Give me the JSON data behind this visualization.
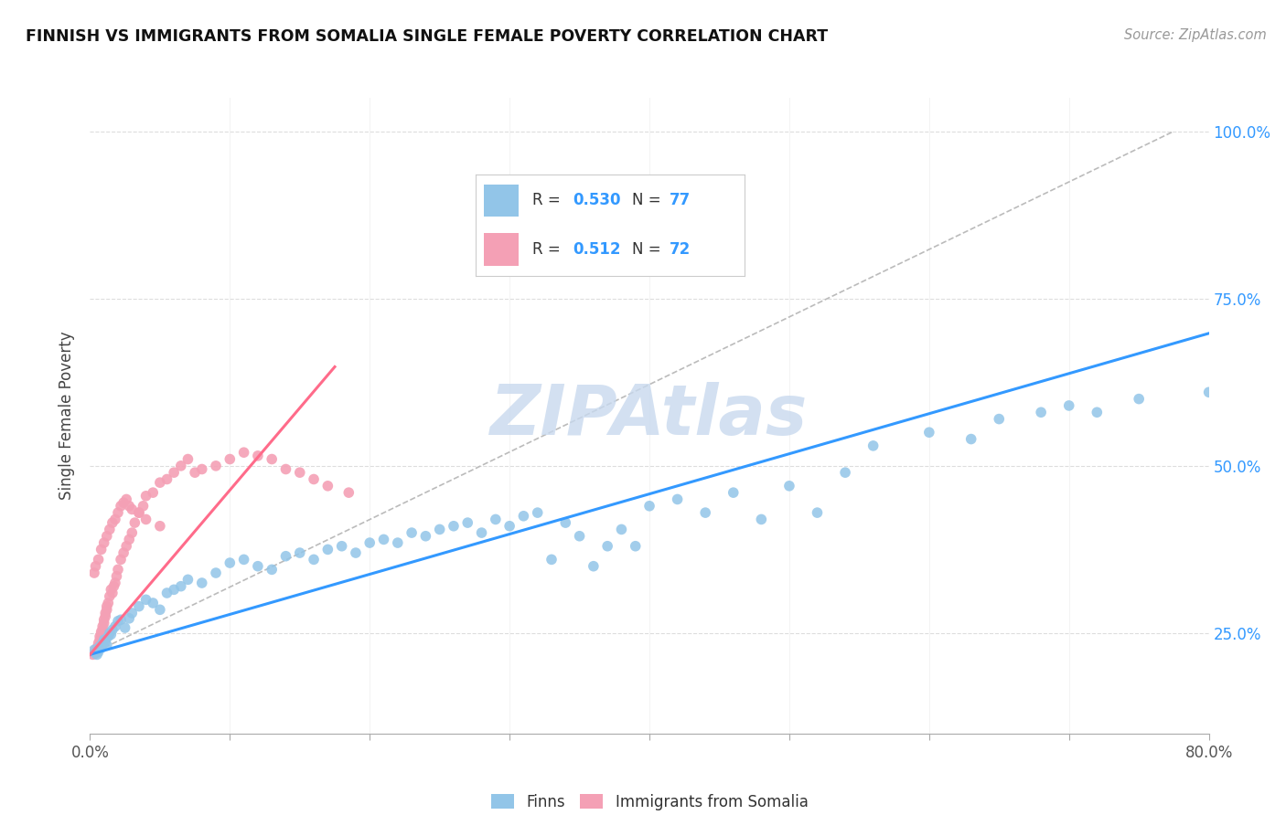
{
  "title": "FINNISH VS IMMIGRANTS FROM SOMALIA SINGLE FEMALE POVERTY CORRELATION CHART",
  "source": "Source: ZipAtlas.com",
  "ylabel": "Single Female Poverty",
  "xlim": [
    0.0,
    0.8
  ],
  "ylim": [
    0.1,
    1.05
  ],
  "xticks": [
    0.0,
    0.1,
    0.2,
    0.3,
    0.4,
    0.5,
    0.6,
    0.7,
    0.8
  ],
  "ytick_positions": [
    0.25,
    0.5,
    0.75,
    1.0
  ],
  "ytick_labels": [
    "25.0%",
    "50.0%",
    "75.0%",
    "100.0%"
  ],
  "blue_color": "#92C5E8",
  "pink_color": "#F4A0B5",
  "blue_line_color": "#3399FF",
  "pink_line_color": "#FF6B8A",
  "watermark_color": "#C8D9EE",
  "legend_R_blue": "0.530",
  "legend_N_blue": "77",
  "legend_R_pink": "0.512",
  "legend_N_pink": "72",
  "blue_line_x": [
    0.0,
    0.8
  ],
  "blue_line_y": [
    0.218,
    0.698
  ],
  "pink_line_x": [
    0.0,
    0.175
  ],
  "pink_line_y": [
    0.218,
    0.648
  ],
  "dashed_line_x": [
    0.0,
    0.775
  ],
  "dashed_line_y": [
    0.218,
    1.0
  ],
  "blue_scatter_x": [
    0.003,
    0.004,
    0.005,
    0.006,
    0.007,
    0.008,
    0.009,
    0.01,
    0.011,
    0.012,
    0.013,
    0.014,
    0.015,
    0.016,
    0.018,
    0.02,
    0.022,
    0.025,
    0.028,
    0.03,
    0.035,
    0.04,
    0.045,
    0.05,
    0.055,
    0.06,
    0.065,
    0.07,
    0.08,
    0.09,
    0.1,
    0.11,
    0.12,
    0.13,
    0.14,
    0.15,
    0.16,
    0.17,
    0.18,
    0.19,
    0.2,
    0.21,
    0.22,
    0.23,
    0.24,
    0.25,
    0.26,
    0.27,
    0.28,
    0.29,
    0.3,
    0.31,
    0.32,
    0.33,
    0.34,
    0.35,
    0.36,
    0.37,
    0.38,
    0.39,
    0.4,
    0.42,
    0.44,
    0.46,
    0.48,
    0.5,
    0.52,
    0.54,
    0.56,
    0.6,
    0.63,
    0.65,
    0.68,
    0.7,
    0.72,
    0.75,
    0.8
  ],
  "blue_scatter_y": [
    0.225,
    0.22,
    0.218,
    0.222,
    0.23,
    0.228,
    0.235,
    0.24,
    0.238,
    0.232,
    0.245,
    0.25,
    0.248,
    0.255,
    0.26,
    0.268,
    0.27,
    0.258,
    0.272,
    0.28,
    0.29,
    0.3,
    0.295,
    0.285,
    0.31,
    0.315,
    0.32,
    0.33,
    0.325,
    0.34,
    0.355,
    0.36,
    0.35,
    0.345,
    0.365,
    0.37,
    0.36,
    0.375,
    0.38,
    0.37,
    0.385,
    0.39,
    0.385,
    0.4,
    0.395,
    0.405,
    0.41,
    0.415,
    0.4,
    0.42,
    0.41,
    0.425,
    0.43,
    0.36,
    0.415,
    0.395,
    0.35,
    0.38,
    0.405,
    0.38,
    0.44,
    0.45,
    0.43,
    0.46,
    0.42,
    0.47,
    0.43,
    0.49,
    0.53,
    0.55,
    0.54,
    0.57,
    0.58,
    0.59,
    0.58,
    0.6,
    0.61
  ],
  "pink_scatter_x": [
    0.002,
    0.003,
    0.004,
    0.005,
    0.005,
    0.006,
    0.006,
    0.007,
    0.007,
    0.008,
    0.008,
    0.009,
    0.009,
    0.01,
    0.01,
    0.011,
    0.011,
    0.012,
    0.012,
    0.013,
    0.014,
    0.015,
    0.016,
    0.017,
    0.018,
    0.019,
    0.02,
    0.022,
    0.024,
    0.026,
    0.028,
    0.03,
    0.032,
    0.035,
    0.038,
    0.04,
    0.045,
    0.05,
    0.055,
    0.06,
    0.065,
    0.07,
    0.075,
    0.08,
    0.09,
    0.1,
    0.11,
    0.12,
    0.13,
    0.14,
    0.15,
    0.16,
    0.17,
    0.185,
    0.003,
    0.004,
    0.006,
    0.008,
    0.01,
    0.012,
    0.014,
    0.016,
    0.018,
    0.02,
    0.022,
    0.024,
    0.026,
    0.028,
    0.03,
    0.035,
    0.04,
    0.05
  ],
  "pink_scatter_y": [
    0.218,
    0.22,
    0.225,
    0.222,
    0.228,
    0.23,
    0.235,
    0.24,
    0.245,
    0.248,
    0.252,
    0.255,
    0.26,
    0.265,
    0.27,
    0.275,
    0.28,
    0.285,
    0.29,
    0.295,
    0.305,
    0.315,
    0.31,
    0.32,
    0.325,
    0.335,
    0.345,
    0.36,
    0.37,
    0.38,
    0.39,
    0.4,
    0.415,
    0.43,
    0.44,
    0.455,
    0.46,
    0.475,
    0.48,
    0.49,
    0.5,
    0.51,
    0.49,
    0.495,
    0.5,
    0.51,
    0.52,
    0.515,
    0.51,
    0.495,
    0.49,
    0.48,
    0.47,
    0.46,
    0.34,
    0.35,
    0.36,
    0.375,
    0.385,
    0.395,
    0.405,
    0.415,
    0.42,
    0.43,
    0.44,
    0.445,
    0.45,
    0.44,
    0.435,
    0.43,
    0.42,
    0.41
  ]
}
